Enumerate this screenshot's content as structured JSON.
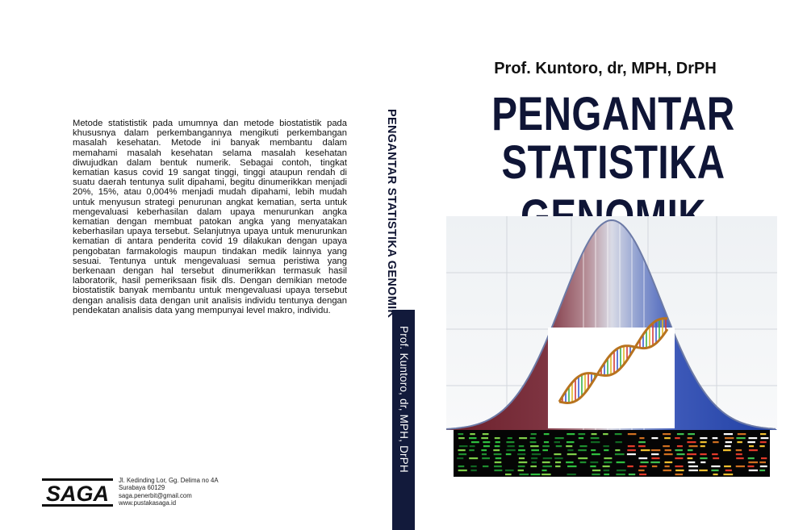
{
  "back_cover": {
    "blurb": "        Metode statististik pada umumnya dan metode biostatistik pada khususnya dalam perkembangannya mengikuti perkembangan masalah kesehatan.  Metode ini banyak membantu dalam memahami masalah kesehatan selama masalah kesehatan diwujudkan dalam bentuk   numerik. Sebagai contoh, tingkat kematian kasus covid 19 sangat tinggi, tinggi ataupun rendah di suatu daerah tentunya sulit dipahami, begitu dinumerikkan menjadi 20%, 15%, atau 0,004% menjadi mudah dipahami, lebih mudah untuk menyusun strategi penurunan angkat kematian, serta untuk mengevaluasi keberhasilan dalam upaya menurunkan angka kematian dengan membuat patokan angka  yang menyatakan keberhasilan upaya tersebut.  Selanjutnya upaya untuk menurunkan kematian di antara penderita covid 19 dilakukan dengan upaya pengobatan farmakologis maupun tindakan medik lainnya yang sesuai. Tentunya untuk mengevaluasi semua peristiwa yang berkenaan dengan hal tersebut dinumerikkan termasuk hasil laboratorik, hasil pemeriksaan fisik dls. Dengan demikian metode biostatistik banyak membantu untuk mengevaluasi upaya tersebut dengan analisis data dengan unit analisis individu tentunya dengan pendekatan analisis data yang mempunyai level makro, individu.",
    "publisher": {
      "logo_text": "SAGA",
      "address_lines": [
        "Jl. Kedinding Lor, Gg. Delima no 4A",
        "Surabaya 60129",
        "saga.penerbit@gmail.com",
        "www.pustakasaga.id"
      ]
    }
  },
  "spine": {
    "title": "PENGANTAR STATISTIKA GENOMIK",
    "author": "Prof. Kuntoro, dr, MPH, DrPH"
  },
  "front_cover": {
    "author": "Prof. Kuntoro, dr, MPH, DrPH",
    "title_line1": "PENGANTAR",
    "title_line2": "STATISTIKA GENOMIK",
    "illustration": {
      "left_tail_color": "#6b1f2a",
      "right_tail_color": "#1f3fa3",
      "curve_color": "#6c7aa6"
    }
  }
}
